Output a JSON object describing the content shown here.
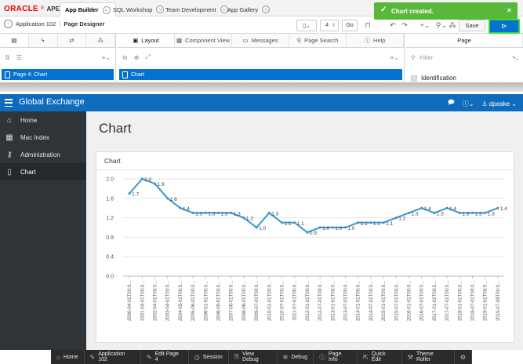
{
  "builder": {
    "logo": {
      "word": "ORACLE",
      "sup": "®",
      "product": "APEX"
    },
    "tabs": [
      {
        "label": "App Builder"
      },
      {
        "label": "SQL Workshop"
      },
      {
        "label": "Team Development"
      },
      {
        "label": "App Gallery"
      }
    ],
    "toast": {
      "message": "Chart created.",
      "close": "×"
    },
    "breadcrumb": {
      "app": "Application 102",
      "separator": "\\",
      "page": "Page Designer"
    },
    "toolbar": {
      "page_number": "4",
      "go_label": "Go",
      "save_label": "Save"
    },
    "left_pane": {
      "tree_row": "Page 4: Chart"
    },
    "center_tabs": [
      {
        "label": "Layout"
      },
      {
        "label": "Component View"
      },
      {
        "label": "Messages"
      },
      {
        "label": "Page Search"
      },
      {
        "label": "Help"
      }
    ],
    "center_row": "Chart",
    "right_pane": {
      "tab": "Page",
      "filter_placeholder": "Filter",
      "group": "Identification"
    }
  },
  "app": {
    "title": "Global Exchange",
    "user": "dpeake",
    "nav": [
      {
        "label": "Home",
        "icon": "home-icon"
      },
      {
        "label": "Mac Index",
        "icon": "table-icon"
      },
      {
        "label": "Administration",
        "icon": "user-key-icon"
      },
      {
        "label": "Chart",
        "icon": "page-icon"
      }
    ],
    "page_title": "Chart",
    "region_title": "Chart"
  },
  "devbar": [
    {
      "label": "Home",
      "icon": "⌂"
    },
    {
      "label": "Application 102",
      "icon": "✎"
    },
    {
      "label": "Edit Page 4",
      "icon": "✎"
    },
    {
      "label": "Session",
      "icon": "◷"
    },
    {
      "label": "View Debug",
      "icon": "⎘"
    },
    {
      "label": "Debug",
      "icon": "✲"
    },
    {
      "label": "Page Info",
      "icon": "ⓘ"
    },
    {
      "label": "Quick Edit",
      "icon": "⇱"
    },
    {
      "label": "Theme Roller",
      "icon": "⚒"
    },
    {
      "label": "",
      "icon": "⚙"
    }
  ],
  "colors": {
    "brand": "#0f6cbd",
    "line": "#3a97d0",
    "toast": "#59b83b",
    "sidebar": "#2e3438"
  },
  "chart_data": {
    "type": "line",
    "title": "",
    "xlabel": "",
    "ylabel": "",
    "ylim": [
      0,
      2.0
    ],
    "yticks": [
      "0.0",
      "0.4",
      "0.8",
      "1.2",
      "1.6",
      "2.0"
    ],
    "grid": true,
    "x": [
      "2000-04-01T00:0...",
      "2001-04-01T00:0...",
      "2002-04-01T00:0...",
      "2003-04-01T00:0...",
      "2004-05-01T00:0...",
      "2005-06-01T00:0...",
      "2006-01-01T00:0...",
      "2006-05-01T00:0...",
      "2007-06-01T00:0...",
      "2008-06-01T00:0...",
      "2009-07-01T00:0...",
      "2010-01-01T00:0...",
      "2010-07-01T00:0...",
      "2011-07-01T00:0...",
      "2012-01-01T00:0...",
      "2012-07-01T00:0...",
      "2013-01-01T00:0...",
      "2013-07-01T00:0...",
      "2014-01-01T00:0...",
      "2014-07-01T00:0...",
      "2015-01-01T00:0...",
      "2015-07-01T00:0...",
      "2016-01-01T00:0...",
      "2016-07-01T00:0...",
      "2017-01-01T00:0...",
      "2017-07-01T00:0...",
      "2018-01-01T00:0...",
      "2018-07-01T00:0...",
      "2019-01-01T00:0...",
      "2019-07-09T00:0..."
    ],
    "series": [
      {
        "values": [
          1.7,
          2.0,
          1.9,
          1.6,
          1.4,
          1.3,
          1.3,
          1.3,
          1.3,
          1.2,
          1.0,
          1.3,
          1.1,
          1.1,
          0.9,
          1.0,
          1.0,
          1.0,
          1.1,
          1.1,
          1.1,
          1.2,
          1.3,
          1.4,
          1.3,
          1.4,
          1.3,
          1.3,
          1.3,
          1.4
        ],
        "labels": [
          "1.7",
          "2.0",
          "1.9",
          "1.6",
          "1.4",
          "1.3",
          "1.3",
          "1.3",
          "1.3",
          "1.2",
          "1.0",
          "1.3",
          "1.1",
          "1.1",
          "0.9",
          "1.0",
          "1.0",
          "1.0",
          "1.1",
          "1.1",
          "1.1",
          "1.2",
          "1.3",
          "1.4",
          "1.3",
          "1.4",
          "1.3",
          "1.3",
          "1.3",
          "1.4"
        ]
      }
    ]
  }
}
